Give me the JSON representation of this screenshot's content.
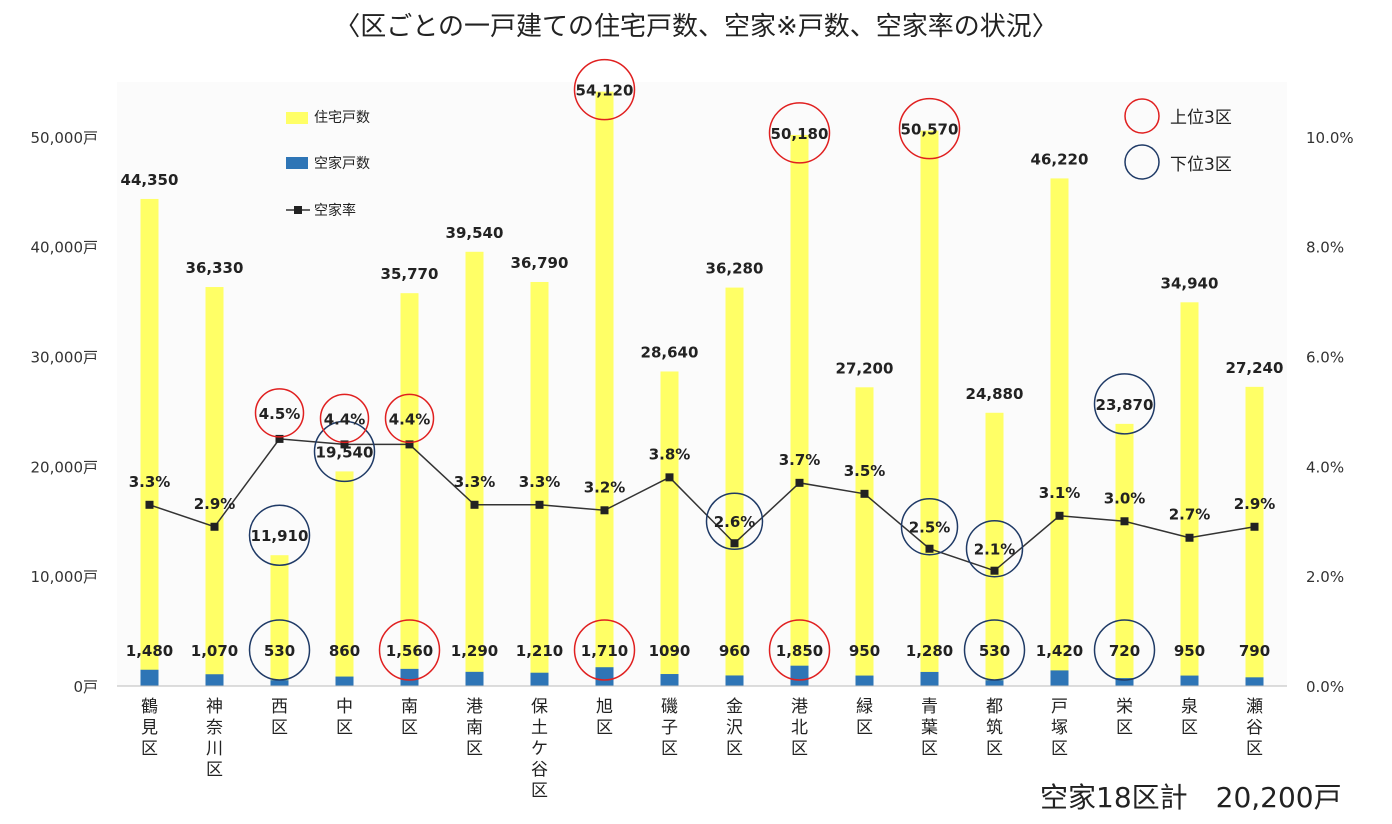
{
  "title": "〈区ごとの一戸建ての住宅戸数、空家※戸数、空家率の状況〉",
  "footer_total": "空家18区計　20,200戸",
  "colors": {
    "housing_bar": "#ffff66",
    "vacant_bar": "#2e75b6",
    "rate_line": "#333333",
    "top3_circle": "#e02020",
    "bottom3_circle": "#1f3a66"
  },
  "legend": {
    "housing": "住宅戸数",
    "vacant": "空家戸数",
    "rate": "空家率",
    "top3": "上位3区",
    "bottom3": "下位3区"
  },
  "chart_data": {
    "type": "bar",
    "categories": [
      "鶴見区",
      "神奈川区",
      "西区",
      "中区",
      "南区",
      "港南区",
      "保土ケ谷区",
      "旭区",
      "磯子区",
      "金沢区",
      "港北区",
      "緑区",
      "青葉区",
      "都筑区",
      "戸塚区",
      "栄区",
      "泉区",
      "瀬谷区"
    ],
    "y_ticks": [
      "0戸",
      "10,000戸",
      "20,000戸",
      "30,000戸",
      "40,000戸",
      "50,000戸"
    ],
    "y2_ticks": [
      "0.0%",
      "2.0%",
      "4.0%",
      "6.0%",
      "8.0%",
      "10.0%"
    ],
    "ylim": [
      0,
      55000
    ],
    "y2lim": [
      0,
      0.11
    ],
    "series": [
      {
        "name": "住宅戸数",
        "kind": "bar",
        "values": [
          44350,
          36330,
          11910,
          19540,
          35770,
          39540,
          36790,
          54120,
          28640,
          36280,
          50180,
          27200,
          50570,
          24880,
          46220,
          23870,
          34940,
          27240
        ],
        "labels": [
          "44,350",
          "36,330",
          "11,910",
          "19,540",
          "35,770",
          "39,540",
          "36,790",
          "54,120",
          "28,640",
          "36,280",
          "50,180",
          "27,200",
          "50,570",
          "24,880",
          "46,220",
          "23,870",
          "34,940",
          "27,240"
        ]
      },
      {
        "name": "空家戸数",
        "kind": "bar",
        "values": [
          1480,
          1070,
          530,
          860,
          1560,
          1290,
          1210,
          1710,
          1090,
          960,
          1850,
          950,
          1280,
          530,
          1420,
          720,
          950,
          790
        ],
        "labels": [
          "1,480",
          "1,070",
          "530",
          "860",
          "1,560",
          "1,290",
          "1,210",
          "1,710",
          "1090",
          "960",
          "1,850",
          "950",
          "1,280",
          "530",
          "1,420",
          "720",
          "950",
          "790"
        ]
      },
      {
        "name": "空家率",
        "kind": "line",
        "values": [
          0.033,
          0.029,
          0.045,
          0.044,
          0.044,
          0.033,
          0.033,
          0.032,
          0.038,
          0.026,
          0.037,
          0.035,
          0.025,
          0.021,
          0.031,
          0.03,
          0.027,
          0.029
        ],
        "labels": [
          "3.3%",
          "2.9%",
          "4.5%",
          "4.4%",
          "4.4%",
          "3.3%",
          "3.3%",
          "3.2%",
          "3.8%",
          "2.6%",
          "3.7%",
          "3.5%",
          "2.5%",
          "2.1%",
          "3.1%",
          "3.0%",
          "2.7%",
          "2.9%"
        ]
      }
    ],
    "highlights": {
      "top3": {
        "住宅戸数": [
          7,
          10,
          12
        ],
        "空家戸数": [
          4,
          7,
          10
        ],
        "空家率": [
          2,
          3,
          4
        ]
      },
      "bottom3": {
        "住宅戸数": [
          2,
          3,
          15
        ],
        "空家戸数": [
          2,
          13,
          15
        ],
        "空家率": [
          9,
          12,
          13
        ]
      }
    }
  }
}
